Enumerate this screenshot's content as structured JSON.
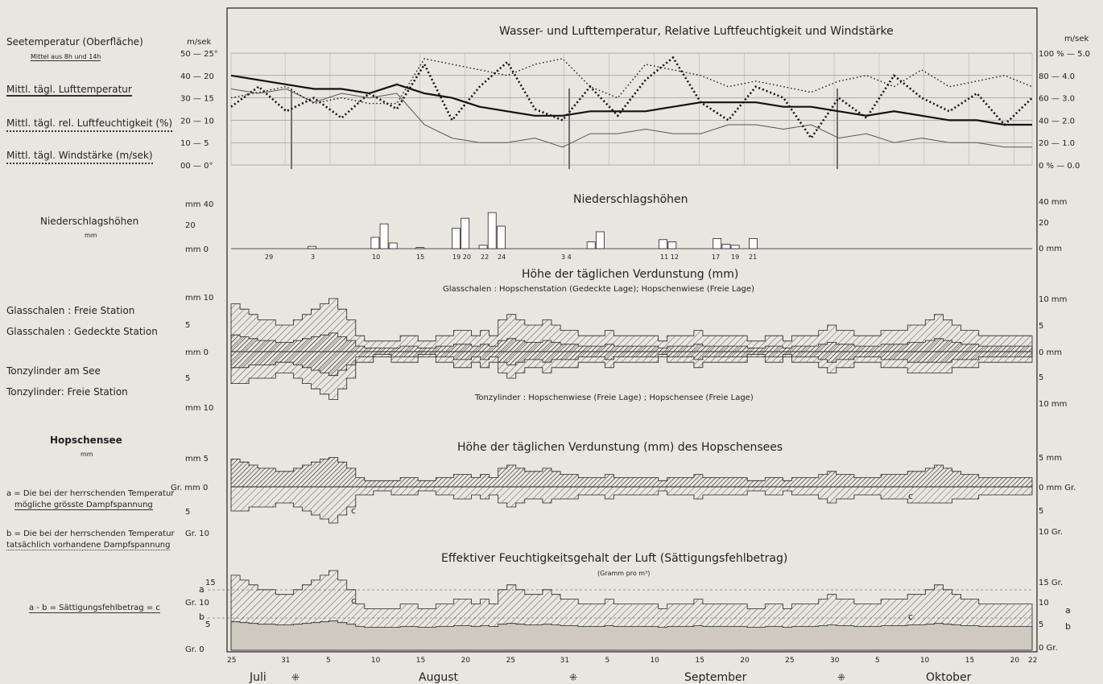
{
  "panels": {
    "temp": {
      "title": "Wasser- und Lufttemperatur, Relative Luftfeuchtigkeit und Windstärke",
      "left_labels": {
        "sea": "Seetemperatur (Oberfläche)",
        "sea_sub": "Mittel aus   8h und 14h",
        "air": "Mittl. tägl. Lufttemperatur",
        "hum": "Mittl. tägl. rel. Luftfeuchtigkeit (%)",
        "wind": "Mittl. tägl. Windstärke (m/sek)"
      },
      "left_unit": "m/sek",
      "left_ticks": [
        "50 — 25°",
        "40 — 20",
        "30 — 15",
        "20 — 10",
        "10 — 5",
        "00 — 0°"
      ],
      "right_unit": "m/sek",
      "right_ticks": [
        "100 % — 5.0",
        "80 — 4.0",
        "60 — 3.0",
        "40 — 2.0",
        "20 — 1.0",
        "0 % — 0.0"
      ]
    },
    "precip": {
      "title": "Niederschlagshöhen",
      "left_label": "Niederschlagshöhen",
      "left_unit_label": "mm",
      "left_ticks": [
        "mm 40",
        "20",
        "mm   0"
      ],
      "right_ticks": [
        "40 mm",
        "20",
        "0 mm"
      ],
      "day_labels": [
        "29",
        "3",
        "10",
        "15",
        "19 20",
        "22",
        "24",
        "3  4",
        "11 12",
        "17",
        "19",
        "21"
      ]
    },
    "evap": {
      "title": "Höhe der täglichen Verdunstung  (mm)",
      "subtitle": "Glasschalen : Hopschenstation (Gedeckte Lage); Hopschenwiese (Freie Lage)",
      "bottom_note": "Tonzylinder : Hopschenwiese (Freie Lage) ; Hopschensee (Freie Lage)",
      "legend": [
        "Glasschalen : Freie Station",
        "Glasschalen : Gedeckte Station",
        "Tonzylinder am See",
        "Tonzylinder: Freie Station"
      ],
      "left_ticks": [
        "mm 10",
        "5",
        "mm   0",
        "5",
        "mm 10"
      ],
      "right_ticks": [
        "10 mm",
        "5",
        "0 mm",
        "5",
        "10 mm"
      ]
    },
    "lake": {
      "title": "Höhe der täglichen Verdunstung (mm) des Hopschensees",
      "left_label": "Hopschensee",
      "left_unit_label": "mm",
      "left_ticks": [
        "mm 5",
        "Gr.  mm   0",
        "5",
        "Gr. 10"
      ],
      "right_ticks": [
        "5 mm",
        "0 mm  Gr.",
        "5",
        "10 Gr."
      ],
      "c_label": "c",
      "note_a": "a = Die bei der herrschenden Temperatur",
      "note_a2": "mögliche grösste Dampfspannung",
      "note_b": "b = Die bei der herrschenden Temperatur",
      "note_b2": "tatsächlich vorhandene Dampfspannung"
    },
    "humidity": {
      "title": "Effektiver Feuchtigkeitsgehalt der Luft (Sättigungsfehlbetrag)",
      "subtitle": "(Gramm pro m³)",
      "formula": "a - b = Sättigungsfehlbetrag = c",
      "left_ticks": [
        "15",
        "Gr. 10",
        "5",
        "Gr.   0"
      ],
      "right_ticks": [
        "15 Gr.",
        "10",
        "5",
        "0 Gr."
      ],
      "a": "a",
      "b": "b",
      "c_label": "c"
    }
  },
  "x_axis": {
    "day_ticks": [
      "25",
      "31",
      "5",
      "10",
      "15",
      "20",
      "25",
      "31",
      "5",
      "10",
      "15",
      "20",
      "25",
      "30",
      "5",
      "10",
      "15",
      "20",
      "22"
    ],
    "months": [
      "Juli",
      "August",
      "September",
      "Oktober"
    ],
    "month_marker": "⁜"
  },
  "chart_data": {
    "type": "line",
    "x_range": [
      "Jul 25",
      "Oct 22"
    ],
    "series": [
      {
        "name": "Seetemperatur (Oberfläche)",
        "unit": "°C",
        "values": [
          20,
          19,
          18,
          17,
          17,
          16,
          18,
          16,
          15,
          13,
          12,
          11,
          11,
          12,
          12,
          12,
          13,
          14,
          14,
          14,
          13,
          13,
          12,
          11,
          12,
          11,
          10,
          10,
          9,
          9
        ]
      },
      {
        "name": "Mittl. tägl. Lufttemperatur",
        "unit": "°C",
        "values": [
          17,
          16,
          17,
          14,
          16,
          15,
          16,
          9,
          6,
          5,
          5,
          6,
          4,
          7,
          7,
          8,
          7,
          7,
          9,
          9,
          8,
          9,
          6,
          7,
          5,
          6,
          5,
          5,
          4,
          4
        ]
      },
      {
        "name": "Mittl. tägl. rel. Luftfeuchtigkeit (%)",
        "unit": "%",
        "values": [
          60,
          65,
          70,
          55,
          60,
          55,
          55,
          95,
          90,
          85,
          80,
          90,
          95,
          70,
          60,
          90,
          85,
          80,
          70,
          75,
          70,
          65,
          75,
          80,
          70,
          85,
          70,
          75,
          80,
          70
        ]
      },
      {
        "name": "Mittl. tägl. Windstärke (m/sek)",
        "unit": "m/sek",
        "values": [
          2.6,
          3.5,
          2.4,
          3.0,
          2.1,
          3.2,
          2.5,
          4.5,
          2.0,
          3.5,
          4.6,
          2.5,
          2.0,
          3.5,
          2.2,
          3.8,
          4.8,
          2.8,
          2.0,
          3.5,
          3.0,
          1.2,
          3.0,
          2.1,
          4.0,
          3.0,
          2.4,
          3.2,
          1.8,
          3.0
        ]
      },
      {
        "name": "Niederschlagshöhen",
        "unit": "mm",
        "points": [
          [
            "Jul 29",
            0
          ],
          [
            "Aug 3",
            2
          ],
          [
            "Aug 10",
            10
          ],
          [
            "Aug 11",
            22
          ],
          [
            "Aug 12",
            5
          ],
          [
            "Aug 15",
            1
          ],
          [
            "Aug 19",
            18
          ],
          [
            "Aug 20",
            27
          ],
          [
            "Aug 22",
            3
          ],
          [
            "Aug 23",
            32
          ],
          [
            "Aug 24",
            20
          ],
          [
            "Sep 3",
            6
          ],
          [
            "Sep 4",
            15
          ],
          [
            "Sep 11",
            8
          ],
          [
            "Sep 12",
            6
          ],
          [
            "Sep 17",
            9
          ],
          [
            "Sep 18",
            4
          ],
          [
            "Sep 19",
            3
          ],
          [
            "Sep 21",
            9
          ]
        ]
      }
    ],
    "ylim_temp": [
      0,
      25
    ],
    "ylim_humidity": [
      0,
      100
    ],
    "ylim_wind": [
      0,
      5
    ],
    "ylim_precip": [
      0,
      40
    ],
    "ylim_evap": [
      -10,
      10
    ],
    "ylim_lake": [
      -10,
      5
    ],
    "ylim_deficit": [
      0,
      15
    ]
  }
}
